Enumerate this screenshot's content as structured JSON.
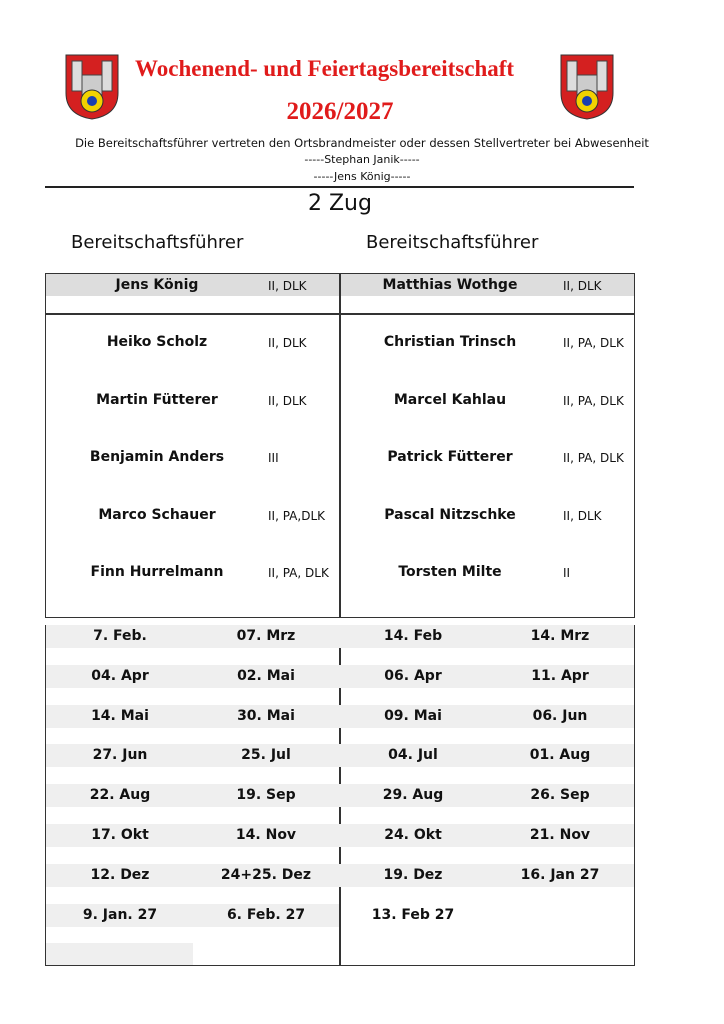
{
  "header": {
    "title": "Wochenend- und Feiertagsbereitschaft",
    "year": "2026/2027",
    "subtitle": "Die Bereitschaftsführer vertreten den Ortsbrandmeister oder dessen Stellvertreter bei Abwesenheit",
    "deputy1": "-----Stephan Janik-----",
    "deputy2": "-----Jens König-----",
    "title_color": "#e01b1b"
  },
  "zug": "2 Zug",
  "columns": [
    {
      "heading": "Bereitschaftsführer",
      "leader": {
        "name": "Jens König",
        "rank": "II, DLK"
      },
      "members": [
        {
          "name": "Heiko Scholz",
          "rank": "II, DLK"
        },
        {
          "name": "Martin Fütterer",
          "rank": "II, DLK"
        },
        {
          "name": "Benjamin Anders",
          "rank": "III"
        },
        {
          "name": "Marco Schauer",
          "rank": "II, PA,DLK"
        },
        {
          "name": "Finn Hurrelmann",
          "rank": "II, PA, DLK"
        }
      ],
      "dates": [
        [
          "7. Feb.",
          "07. Mrz"
        ],
        [
          "04. Apr",
          "02. Mai"
        ],
        [
          "14. Mai",
          "30. Mai"
        ],
        [
          "27. Jun",
          "25. Jul"
        ],
        [
          "22. Aug",
          "19. Sep"
        ],
        [
          "17. Okt",
          "14. Nov"
        ],
        [
          "12. Dez",
          "24+25. Dez"
        ],
        [
          "9. Jan. 27",
          "6. Feb. 27"
        ]
      ]
    },
    {
      "heading": "Bereitschaftsführer",
      "leader": {
        "name": "Matthias Wothge",
        "rank": "II, DLK"
      },
      "members": [
        {
          "name": "Christian Trinsch",
          "rank": "II, PA, DLK"
        },
        {
          "name": "Marcel Kahlau",
          "rank": "II, PA, DLK"
        },
        {
          "name": "Patrick Fütterer",
          "rank": "II, PA, DLK"
        },
        {
          "name": "Pascal Nitzschke",
          "rank": "II, DLK"
        },
        {
          "name": "Torsten Milte",
          "rank": "II"
        }
      ],
      "dates": [
        [
          "14. Feb",
          "14. Mrz"
        ],
        [
          "06. Apr",
          "11. Apr"
        ],
        [
          "09. Mai",
          "06. Jun"
        ],
        [
          "04. Jul",
          "01. Aug"
        ],
        [
          "29. Aug",
          "26. Sep"
        ],
        [
          "24. Okt",
          "21. Nov"
        ],
        [
          "19. Dez",
          "16. Jan 27"
        ],
        [
          "13. Feb 27",
          ""
        ]
      ]
    }
  ]
}
